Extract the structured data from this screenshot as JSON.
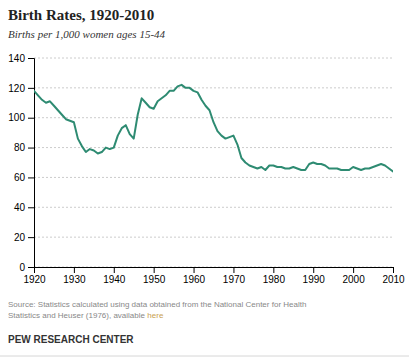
{
  "chart_data": {
    "type": "line",
    "title": "Birth Rates, 1920-2010",
    "subtitle": "Births per 1,000 women ages 15-44",
    "annotations": [
      "Source: Statistics calculated using data obtained from the National Center for Health",
      "Statistics and Heuser (1976), available",
      "here",
      "PEW RESEARCH CENTER"
    ],
    "color": "#2E8B72",
    "grid": true,
    "xlim": [
      1920,
      2010
    ],
    "ylim": [
      0,
      140
    ],
    "xticks": [
      1920,
      1930,
      1940,
      1950,
      1960,
      1970,
      1980,
      1990,
      2000,
      2010
    ],
    "yticks": [
      0,
      20,
      40,
      60,
      80,
      100,
      120,
      140
    ],
    "x": [
      1920,
      1921,
      1922,
      1923,
      1924,
      1925,
      1926,
      1927,
      1928,
      1929,
      1930,
      1931,
      1932,
      1933,
      1934,
      1935,
      1936,
      1937,
      1938,
      1939,
      1940,
      1941,
      1942,
      1943,
      1944,
      1945,
      1946,
      1947,
      1948,
      1949,
      1950,
      1951,
      1952,
      1953,
      1954,
      1955,
      1956,
      1957,
      1958,
      1959,
      1960,
      1961,
      1962,
      1963,
      1964,
      1965,
      1966,
      1967,
      1968,
      1969,
      1970,
      1971,
      1972,
      1973,
      1974,
      1975,
      1976,
      1977,
      1978,
      1979,
      1980,
      1981,
      1982,
      1983,
      1984,
      1985,
      1986,
      1987,
      1988,
      1989,
      1990,
      1991,
      1992,
      1993,
      1994,
      1995,
      1996,
      1997,
      1998,
      1999,
      2000,
      2001,
      2002,
      2003,
      2004,
      2005,
      2006,
      2007,
      2008,
      2009,
      2010
    ],
    "values": [
      118,
      115,
      112,
      110,
      111,
      108,
      105,
      102,
      99,
      98,
      97,
      86,
      81,
      77,
      79,
      78,
      76,
      77,
      80,
      79,
      80,
      88,
      93,
      95,
      89,
      86,
      102,
      113,
      110,
      107,
      106,
      111,
      113,
      115,
      118,
      118,
      121,
      122,
      120,
      120,
      118,
      117,
      112,
      108,
      105,
      97,
      91,
      88,
      86,
      87,
      88,
      82,
      73,
      70,
      68,
      67,
      66,
      67,
      65,
      68,
      68,
      67,
      67,
      66,
      66,
      67,
      66,
      65,
      65,
      69,
      70,
      69,
      69,
      68,
      66,
      66,
      66,
      65,
      65,
      65,
      67,
      66,
      65,
      66,
      66,
      67,
      68,
      69,
      68,
      66,
      64
    ]
  }
}
